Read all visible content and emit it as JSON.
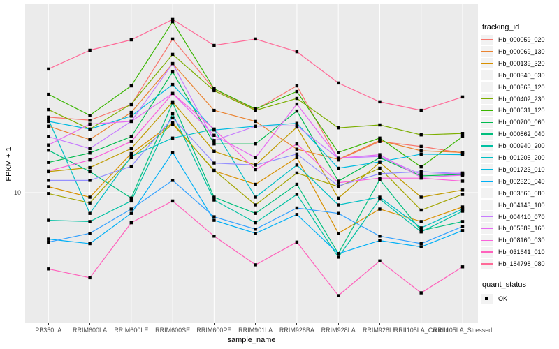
{
  "colors": {
    "background": "#FFFFFF",
    "panel_background": "#EBEBEB",
    "grid": "#FFFFFF",
    "tick_text": "#4D4D4D",
    "axis_title_text": "#000000",
    "point": "#000000",
    "legend_key_background": "#F2F2F2"
  },
  "axes": {
    "x_title": "sample_name",
    "y_title": "FPKM + 1",
    "y_tick_label": "10"
  },
  "legend": {
    "tracking_title": "tracking_id",
    "quant_title": "quant_status",
    "quant_items": [
      {
        "label": "OK",
        "marker": "black-square"
      }
    ]
  },
  "chart_data": {
    "type": "line",
    "xlabel": "sample_name",
    "ylabel": "FPKM + 1",
    "yscale": "log10",
    "ylim": [
      2.3,
      85
    ],
    "ytick_values": [
      10
    ],
    "ytick_labels": [
      "10"
    ],
    "grid": "vertical-per-category-plus-y10",
    "legend_position": "right",
    "point_marker": "filled-black-square",
    "categories": [
      "PB350LA",
      "RRIM600LA",
      "RRIM600LE",
      "RRIM600SE",
      "RRIM600PE",
      "RRIM901LA",
      "RRIM928BA",
      "RRIM928LA",
      "RRIM928LE",
      "RRII105LA_Control",
      "RRII105LA_Stressed"
    ],
    "series": [
      {
        "name": "Hb_000059_020",
        "color": "#F8766D",
        "values": [
          23.6,
          22.8,
          27.2,
          57.4,
          32.4,
          25.7,
          33.7,
          14.5,
          17.9,
          16.9,
          15.7
        ]
      },
      {
        "name": "Hb_000069_130",
        "color": "#EA8331",
        "values": [
          21.3,
          18.3,
          24.9,
          43.4,
          25.5,
          22.5,
          16.4,
          14.6,
          18.1,
          16.1,
          15.8
        ]
      },
      {
        "name": "Hb_000139_320",
        "color": "#D89000",
        "values": [
          10.7,
          9.5,
          15.6,
          22.1,
          12.8,
          11.0,
          14.9,
          6.3,
          8.3,
          7.2,
          8.5
        ]
      },
      {
        "name": "Hb_000340_030",
        "color": "#C09B00",
        "values": [
          12.7,
          13.3,
          16.5,
          28.1,
          16.0,
          13.7,
          21.1,
          9.4,
          14.1,
          9.5,
          10.3
        ]
      },
      {
        "name": "Hb_000363_120",
        "color": "#A3A500",
        "values": [
          9.9,
          8.9,
          14.9,
          21.8,
          12.9,
          8.7,
          12.5,
          10.7,
          13.2,
          8.2,
          9.8
        ]
      },
      {
        "name": "Hb_000402_230",
        "color": "#7CAE00",
        "values": [
          25.7,
          20.6,
          27.4,
          48.2,
          31.9,
          25.5,
          29.2,
          20.9,
          21.6,
          19.3,
          19.6
        ]
      },
      {
        "name": "Hb_000631_120",
        "color": "#39B600",
        "values": [
          30.6,
          24.1,
          33.7,
          69.9,
          32.6,
          25.9,
          31.6,
          15.8,
          18.6,
          13.4,
          18.9
        ]
      },
      {
        "name": "Hb_000700_060",
        "color": "#00BB4E",
        "values": [
          14.1,
          15.7,
          18.9,
          39.5,
          17.4,
          17.4,
          25.3,
          11.4,
          14.9,
          12.1,
          12.3
        ]
      },
      {
        "name": "Hb_000862_040",
        "color": "#00BF7D",
        "values": [
          16.2,
          12.7,
          9.4,
          27.8,
          9.5,
          7.9,
          11.0,
          5.0,
          11.6,
          6.5,
          7.2
        ]
      },
      {
        "name": "Hb_000940_200",
        "color": "#00C1A3",
        "values": [
          7.3,
          7.2,
          9.1,
          24.5,
          9.2,
          7.1,
          9.8,
          4.8,
          9.3,
          6.4,
          8.1
        ]
      },
      {
        "name": "Hb_001205_200",
        "color": "#00BFC4",
        "values": [
          23.0,
          7.9,
          15.1,
          18.6,
          20.6,
          9.5,
          13.7,
          8.7,
          9.5,
          6.7,
          8.3
        ]
      },
      {
        "name": "Hb_001723_010",
        "color": "#00BAE0",
        "values": [
          22.5,
          20.6,
          23.9,
          34.2,
          20.4,
          21.3,
          22.0,
          13.2,
          14.2,
          15.5,
          15.4
        ]
      },
      {
        "name": "Hb_002325_040",
        "color": "#00B0F6",
        "values": [
          5.9,
          5.6,
          7.9,
          15.8,
          7.3,
          6.3,
          7.8,
          5.0,
          5.8,
          5.4,
          6.5
        ]
      },
      {
        "name": "Hb_003866_080",
        "color": "#35A2FF",
        "values": [
          5.7,
          6.3,
          8.3,
          11.5,
          7.6,
          6.6,
          8.4,
          7.9,
          6.1,
          5.6,
          6.8
        ]
      },
      {
        "name": "Hb_004143_100",
        "color": "#9590FF",
        "values": [
          11.5,
          11.5,
          13.5,
          23.4,
          14.0,
          13.7,
          15.5,
          10.8,
          12.4,
          12.7,
          12.4
        ]
      },
      {
        "name": "Hb_004410_070",
        "color": "#C77CFF",
        "values": [
          18.9,
          16.5,
          22.5,
          43.4,
          18.1,
          21.3,
          21.4,
          14.8,
          15.1,
          12.3,
          12.5
        ]
      },
      {
        "name": "Hb_005389_160",
        "color": "#E76BF3",
        "values": [
          17.2,
          21.8,
          22.5,
          30.9,
          19.2,
          14.9,
          27.4,
          14.8,
          15.4,
          11.9,
          12.2
        ]
      },
      {
        "name": "Hb_008160_030",
        "color": "#FA62DB",
        "values": [
          12.8,
          14.5,
          17.9,
          30.9,
          20.6,
          13.0,
          17.4,
          11.2,
          11.8,
          11.8,
          11.4
        ]
      },
      {
        "name": "Hb_031641_010",
        "color": "#FF62BC",
        "values": [
          4.2,
          3.8,
          7.1,
          9.1,
          6.1,
          4.4,
          5.7,
          3.1,
          4.6,
          3.2,
          4.3
        ]
      },
      {
        "name": "Hb_184798_080",
        "color": "#FF6A98",
        "values": [
          40.8,
          50.5,
          56.9,
          71.7,
          53.4,
          57.4,
          49.7,
          34.8,
          28.1,
          25.5,
          29.7
        ]
      }
    ]
  }
}
